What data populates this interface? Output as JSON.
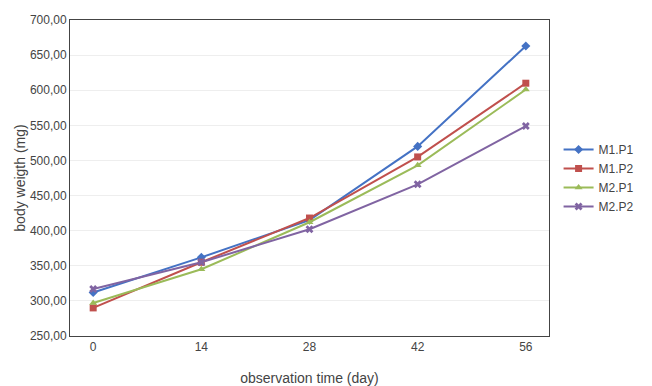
{
  "chart_data": {
    "type": "line",
    "xlabel": "observation time (day)",
    "ylabel": "body weigth (mg)",
    "x": [
      0,
      14,
      28,
      42,
      56
    ],
    "series": [
      {
        "name": "M1.P1",
        "color": "#4472C4",
        "marker": "diamond",
        "values": [
          312,
          362,
          415,
          520,
          663
        ]
      },
      {
        "name": "M1.P2",
        "color": "#C0504D",
        "marker": "square",
        "values": [
          290,
          355,
          418,
          505,
          610
        ]
      },
      {
        "name": "M2.P1",
        "color": "#9BBB59",
        "marker": "triangle-up",
        "values": [
          297,
          345,
          412,
          493,
          601
        ]
      },
      {
        "name": "M2.P2",
        "color": "#8064A2",
        "marker": "x",
        "values": [
          317,
          355,
          402,
          466,
          549
        ]
      }
    ],
    "xlim": [
      -3,
      59
    ],
    "xticks": [
      0,
      14,
      28,
      42,
      56
    ],
    "ylim": [
      250,
      700
    ],
    "yticks": [
      {
        "value": 250,
        "label": "250,00"
      },
      {
        "value": 300,
        "label": "300,00"
      },
      {
        "value": 350,
        "label": "350,00"
      },
      {
        "value": 400,
        "label": "400,00"
      },
      {
        "value": 450,
        "label": "450,00"
      },
      {
        "value": 500,
        "label": "500,00"
      },
      {
        "value": 550,
        "label": "550,00"
      },
      {
        "value": 600,
        "label": "600,00"
      },
      {
        "value": 650,
        "label": "650,00"
      },
      {
        "value": 700,
        "label": "700,00"
      }
    ],
    "grid": "y",
    "legend": "right"
  }
}
